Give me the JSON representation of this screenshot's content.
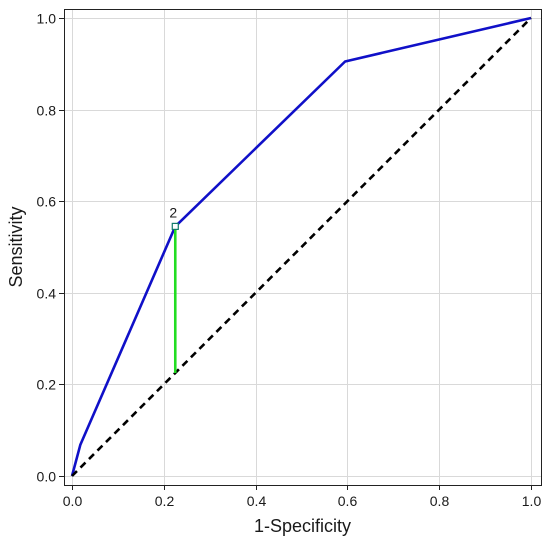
{
  "chart_data": {
    "type": "line",
    "xlabel": "1-Specificity",
    "ylabel": "Sensitivity",
    "xlim": [
      0.0,
      1.0
    ],
    "ylim": [
      0.0,
      1.0
    ],
    "x_ticks": [
      "0.0",
      "0.2",
      "0.4",
      "0.6",
      "0.8",
      "1.0"
    ],
    "y_ticks": [
      "0.0",
      "0.2",
      "0.4",
      "0.6",
      "0.8",
      "1.0"
    ],
    "grid": true,
    "series": [
      {
        "style": "solid",
        "color": "#1010c8",
        "x": [
          0.0,
          0.018,
          0.225,
          0.595,
          1.0
        ],
        "y": [
          0.0,
          0.068,
          0.545,
          0.905,
          1.0
        ]
      },
      {
        "style": "dashed",
        "color": "#000000",
        "x": [
          0.0,
          1.0
        ],
        "y": [
          0.0,
          1.0
        ]
      }
    ],
    "annotations": [
      {
        "label": "2",
        "x": 0.225,
        "y": 0.545,
        "marker": "square",
        "youden_line": {
          "x": 0.225,
          "y_from": 0.225,
          "y_to": 0.545,
          "color": "#22dd22"
        }
      }
    ]
  }
}
